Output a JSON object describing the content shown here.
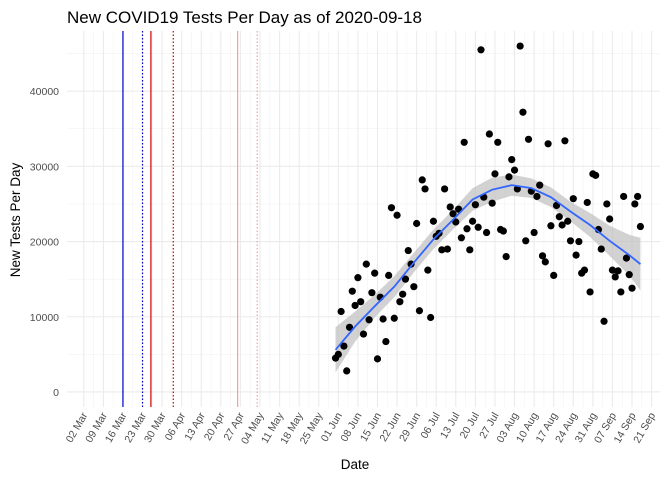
{
  "chart_data": {
    "type": "scatter",
    "title": "New COVID19 Tests Per Day as of 2020-09-18",
    "xlabel": "Date",
    "ylabel": "New Tests Per Day",
    "x_axis": "date",
    "xlim": [
      "2020-02-25",
      "2020-09-24"
    ],
    "ylim": [
      -2000,
      48000
    ],
    "yticks": [
      0,
      10000,
      20000,
      30000,
      40000
    ],
    "ytick_labels": [
      "0",
      "10000",
      "20000",
      "30000",
      "40000"
    ],
    "xticks": [
      "2020-03-02",
      "2020-03-09",
      "2020-03-16",
      "2020-03-23",
      "2020-03-30",
      "2020-04-06",
      "2020-04-13",
      "2020-04-20",
      "2020-04-27",
      "2020-05-04",
      "2020-05-11",
      "2020-05-18",
      "2020-05-25",
      "2020-06-01",
      "2020-06-08",
      "2020-06-15",
      "2020-06-22",
      "2020-06-29",
      "2020-07-06",
      "2020-07-13",
      "2020-07-20",
      "2020-07-27",
      "2020-08-03",
      "2020-08-10",
      "2020-08-17",
      "2020-08-24",
      "2020-08-31",
      "2020-09-07",
      "2020-09-14",
      "2020-09-21"
    ],
    "xtick_labels": [
      "02 Mar",
      "09 Mar",
      "16 Mar",
      "23 Mar",
      "30 Mar",
      "06 Apr",
      "13 Apr",
      "20 Apr",
      "27 Apr",
      "04 May",
      "11 May",
      "18 May",
      "25 May",
      "01 Jun",
      "08 Jun",
      "15 Jun",
      "22 Jun",
      "29 Jun",
      "06 Jul",
      "13 Jul",
      "20 Jul",
      "27 Jul",
      "03 Aug",
      "10 Aug",
      "17 Aug",
      "24 Aug",
      "31 Aug",
      "07 Sep",
      "14 Sep",
      "21 Sep"
    ],
    "grid": true,
    "background": "white",
    "vertical_lines": [
      {
        "date": "2020-03-16",
        "color": "#0000cc",
        "style": "solid"
      },
      {
        "date": "2020-03-23",
        "color": "#0000cc",
        "style": "dotted"
      },
      {
        "date": "2020-03-26",
        "color": "#cc0000",
        "style": "solid"
      },
      {
        "date": "2020-04-03",
        "color": "#cc0000",
        "style": "dotted"
      },
      {
        "date": "2020-04-26",
        "color": "#f4a0a0",
        "style": "solid"
      },
      {
        "date": "2020-05-03",
        "color": "#f4a0a0",
        "style": "dotted"
      }
    ],
    "points": {
      "color": "#000000",
      "x": [
        "2020-05-31",
        "2020-06-01",
        "2020-06-02",
        "2020-06-03",
        "2020-06-04",
        "2020-06-05",
        "2020-06-06",
        "2020-06-07",
        "2020-06-08",
        "2020-06-09",
        "2020-06-10",
        "2020-06-11",
        "2020-06-12",
        "2020-06-13",
        "2020-06-14",
        "2020-06-15",
        "2020-06-16",
        "2020-06-17",
        "2020-06-18",
        "2020-06-19",
        "2020-06-20",
        "2020-06-21",
        "2020-06-22",
        "2020-06-23",
        "2020-06-24",
        "2020-06-25",
        "2020-06-26",
        "2020-06-27",
        "2020-06-28",
        "2020-06-29",
        "2020-06-30",
        "2020-07-01",
        "2020-07-02",
        "2020-07-03",
        "2020-07-04",
        "2020-07-05",
        "2020-07-06",
        "2020-07-07",
        "2020-07-08",
        "2020-07-09",
        "2020-07-10",
        "2020-07-11",
        "2020-07-12",
        "2020-07-13",
        "2020-07-14",
        "2020-07-15",
        "2020-07-16",
        "2020-07-17",
        "2020-07-18",
        "2020-07-19",
        "2020-07-20",
        "2020-07-21",
        "2020-07-22",
        "2020-07-23",
        "2020-07-24",
        "2020-07-25",
        "2020-07-26",
        "2020-07-27",
        "2020-07-28",
        "2020-07-29",
        "2020-07-30",
        "2020-07-31",
        "2020-08-01",
        "2020-08-02",
        "2020-08-03",
        "2020-08-04",
        "2020-08-05",
        "2020-08-06",
        "2020-08-07",
        "2020-08-08",
        "2020-08-09",
        "2020-08-10",
        "2020-08-11",
        "2020-08-12",
        "2020-08-13",
        "2020-08-14",
        "2020-08-15",
        "2020-08-16",
        "2020-08-17",
        "2020-08-18",
        "2020-08-19",
        "2020-08-20",
        "2020-08-21",
        "2020-08-22",
        "2020-08-23",
        "2020-08-24",
        "2020-08-25",
        "2020-08-26",
        "2020-08-27",
        "2020-08-28",
        "2020-08-29",
        "2020-08-30",
        "2020-08-31",
        "2020-09-01",
        "2020-09-02",
        "2020-09-03",
        "2020-09-04",
        "2020-09-05",
        "2020-09-06",
        "2020-09-07",
        "2020-09-08",
        "2020-09-09",
        "2020-09-10",
        "2020-09-11",
        "2020-09-12",
        "2020-09-13",
        "2020-09-14",
        "2020-09-15",
        "2020-09-16",
        "2020-09-17"
      ],
      "y": [
        4500,
        5000,
        10700,
        6100,
        2800,
        8600,
        13400,
        11500,
        15200,
        12000,
        7700,
        17000,
        9600,
        13200,
        15800,
        4400,
        12600,
        9700,
        6700,
        15500,
        24500,
        9800,
        23500,
        12000,
        13000,
        15000,
        18800,
        17000,
        14000,
        22400,
        10800,
        28200,
        27000,
        16200,
        9900,
        22700,
        20700,
        21100,
        18900,
        27000,
        19000,
        24600,
        23700,
        22600,
        24300,
        20500,
        33200,
        21700,
        18900,
        22700,
        24900,
        21900,
        45500,
        25900,
        21200,
        34300,
        25100,
        29000,
        33200,
        21600,
        21400,
        18000,
        28600,
        30900,
        29500,
        27000,
        46000,
        37200,
        20100,
        33600,
        26700,
        21200,
        26000,
        27500,
        18100,
        17300,
        33000,
        22100,
        15500,
        24800,
        23300,
        22200,
        33400,
        22700,
        20100,
        25700,
        18200,
        20000,
        15800,
        16200,
        25200,
        13300,
        29000,
        28800,
        21600,
        19000,
        9400,
        25000,
        23000,
        16200,
        15300,
        16100,
        13300,
        26000,
        17800,
        15600,
        13800,
        25000,
        26000,
        22000
      ]
    },
    "smooth": {
      "color": "#3366ff",
      "band_color": "#bfbfbf",
      "x": [
        "2020-05-31",
        "2020-06-07",
        "2020-06-14",
        "2020-06-21",
        "2020-06-28",
        "2020-07-05",
        "2020-07-12",
        "2020-07-19",
        "2020-07-26",
        "2020-08-02",
        "2020-08-09",
        "2020-08-16",
        "2020-08-23",
        "2020-08-30",
        "2020-09-06",
        "2020-09-13",
        "2020-09-17"
      ],
      "y": [
        5600,
        8700,
        11400,
        14000,
        17200,
        20300,
        22900,
        25600,
        26900,
        27500,
        27100,
        25900,
        24000,
        22200,
        20100,
        18200,
        17000
      ],
      "lower": [
        2600,
        6700,
        9900,
        12600,
        15900,
        19000,
        21600,
        24100,
        25300,
        26100,
        25800,
        24600,
        22700,
        20600,
        18100,
        15500,
        13500
      ],
      "upper": [
        8600,
        10700,
        12900,
        15400,
        18500,
        21600,
        24200,
        27100,
        28500,
        28900,
        28400,
        27200,
        25300,
        23800,
        22100,
        20900,
        20500
      ]
    }
  }
}
